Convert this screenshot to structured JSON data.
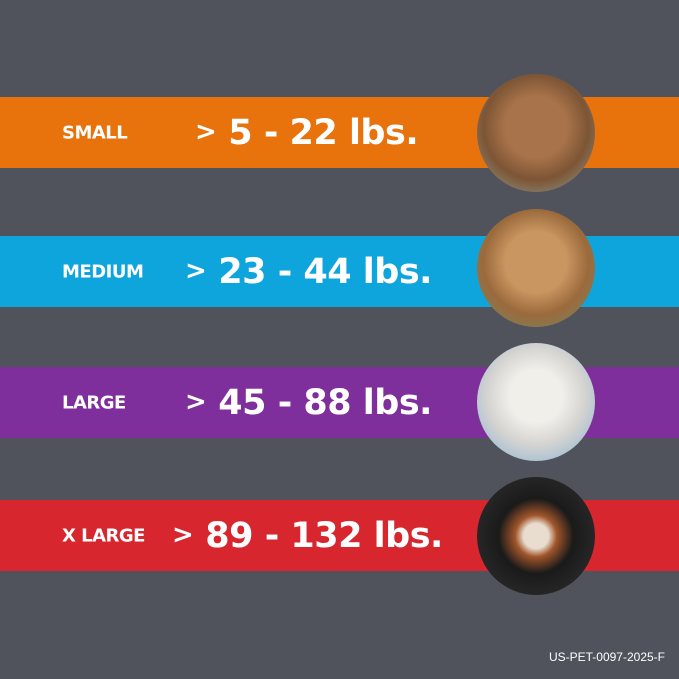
{
  "rows": [
    {
      "label": "SMALL",
      "arrow": ">",
      "range": "5 - 22 lbs.",
      "color": "#e8720c",
      "photo": "terrier-dog-photo"
    },
    {
      "label": "MEDIUM",
      "arrow": ">",
      "range": "23 - 44 lbs.",
      "color": "#0ea5dd",
      "photo": "cocker-spaniel-dog-photo"
    },
    {
      "label": "LARGE",
      "arrow": ">",
      "range": "45 - 88 lbs.",
      "color": "#7f2f9b",
      "photo": "dalmatian-dog-photo"
    },
    {
      "label": "X LARGE",
      "arrow": ">",
      "range": "89 - 132 lbs.",
      "color": "#d8262f",
      "photo": "bernese-mountain-dog-photo"
    }
  ],
  "code": "US-PET-0097-2025-F",
  "background": "#50535c"
}
